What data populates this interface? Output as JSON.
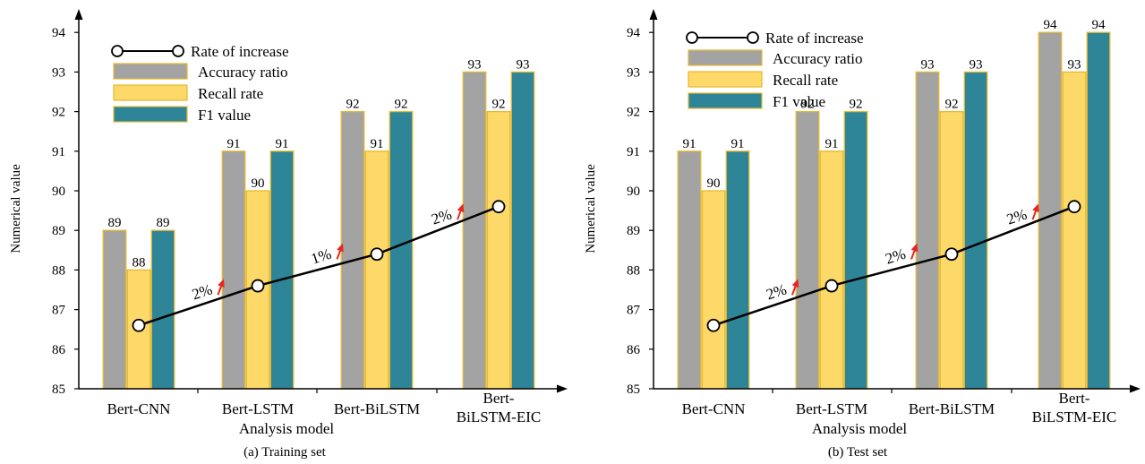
{
  "legend_labels": {
    "rate": "Rate of increase",
    "accuracy": "Accuracy ratio",
    "recall": "Recall rate",
    "f1": "F1 value"
  },
  "colors": {
    "accuracy": "#a3a3a3",
    "recall": "#fdd96a",
    "f1": "#2e8597",
    "bar_border": "#e6b82e",
    "line": "#000000",
    "arrow": "#e8261f"
  },
  "chart_data": [
    {
      "type": "bar",
      "caption": "(a) Training set",
      "xlabel": "Analysis model",
      "ylabel": "Numerical value",
      "ylim": [
        85,
        95
      ],
      "yticks": [
        "85",
        "86",
        "87",
        "88",
        "89",
        "90",
        "91",
        "92",
        "93",
        "94",
        "95"
      ],
      "categories": [
        "Bert-CNN",
        "Bert-LSTM",
        "Bert-BiLSTM",
        "Bert-BiLSTM-EIC"
      ],
      "category_label_lines": [
        [
          "Bert-CNN"
        ],
        [
          "Bert-LSTM"
        ],
        [
          "Bert-BiLSTM"
        ],
        [
          "Bert-",
          "BiLSTM-EIC"
        ]
      ],
      "series": [
        {
          "name": "Accuracy ratio",
          "values": [
            89,
            91,
            92,
            93
          ],
          "labels": [
            "89",
            "91",
            "92",
            "93"
          ]
        },
        {
          "name": "Recall rate",
          "values": [
            88,
            90,
            91,
            92
          ],
          "labels": [
            "88",
            "90",
            "91",
            "92"
          ]
        },
        {
          "name": "F1 value",
          "values": [
            89,
            91,
            92,
            93
          ],
          "labels": [
            "89",
            "91",
            "92",
            "93"
          ]
        }
      ],
      "rate_line": {
        "name": "Rate of increase",
        "values": [
          86.6,
          87.6,
          88.4,
          89.6
        ]
      },
      "rate_labels": [
        "2%",
        "1%",
        "2%"
      ],
      "legend_position": "top-left"
    },
    {
      "type": "bar",
      "caption": "(b) Test set",
      "xlabel": "Analysis model",
      "ylabel": "Numerical value",
      "ylim": [
        85,
        95
      ],
      "yticks": [
        "85",
        "86",
        "87",
        "88",
        "89",
        "90",
        "91",
        "92",
        "93",
        "94",
        "95"
      ],
      "categories": [
        "Bert-CNN",
        "Bert-LSTM",
        "Bert-BiLSTM",
        "Bert-BiLSTM-EIC"
      ],
      "category_label_lines": [
        [
          "Bert-CNN"
        ],
        [
          "Bert-LSTM"
        ],
        [
          "Bert-BiLSTM"
        ],
        [
          "Bert-",
          "BiLSTM-EIC"
        ]
      ],
      "series": [
        {
          "name": "Accuracy ratio",
          "values": [
            91,
            92,
            93,
            94
          ],
          "labels": [
            "91",
            "92",
            "93",
            "94"
          ]
        },
        {
          "name": "Recall rate",
          "values": [
            90,
            91,
            92,
            93
          ],
          "labels": [
            "90",
            "91",
            "92",
            "93"
          ]
        },
        {
          "name": "F1 value",
          "values": [
            91,
            92,
            93,
            94
          ],
          "labels": [
            "91",
            "92",
            "93",
            "94"
          ]
        }
      ],
      "rate_line": {
        "name": "Rate of increase",
        "values": [
          86.6,
          87.6,
          88.4,
          89.6
        ]
      },
      "rate_labels": [
        "2%",
        "2%",
        "2%"
      ],
      "legend_position": "top-left"
    }
  ]
}
